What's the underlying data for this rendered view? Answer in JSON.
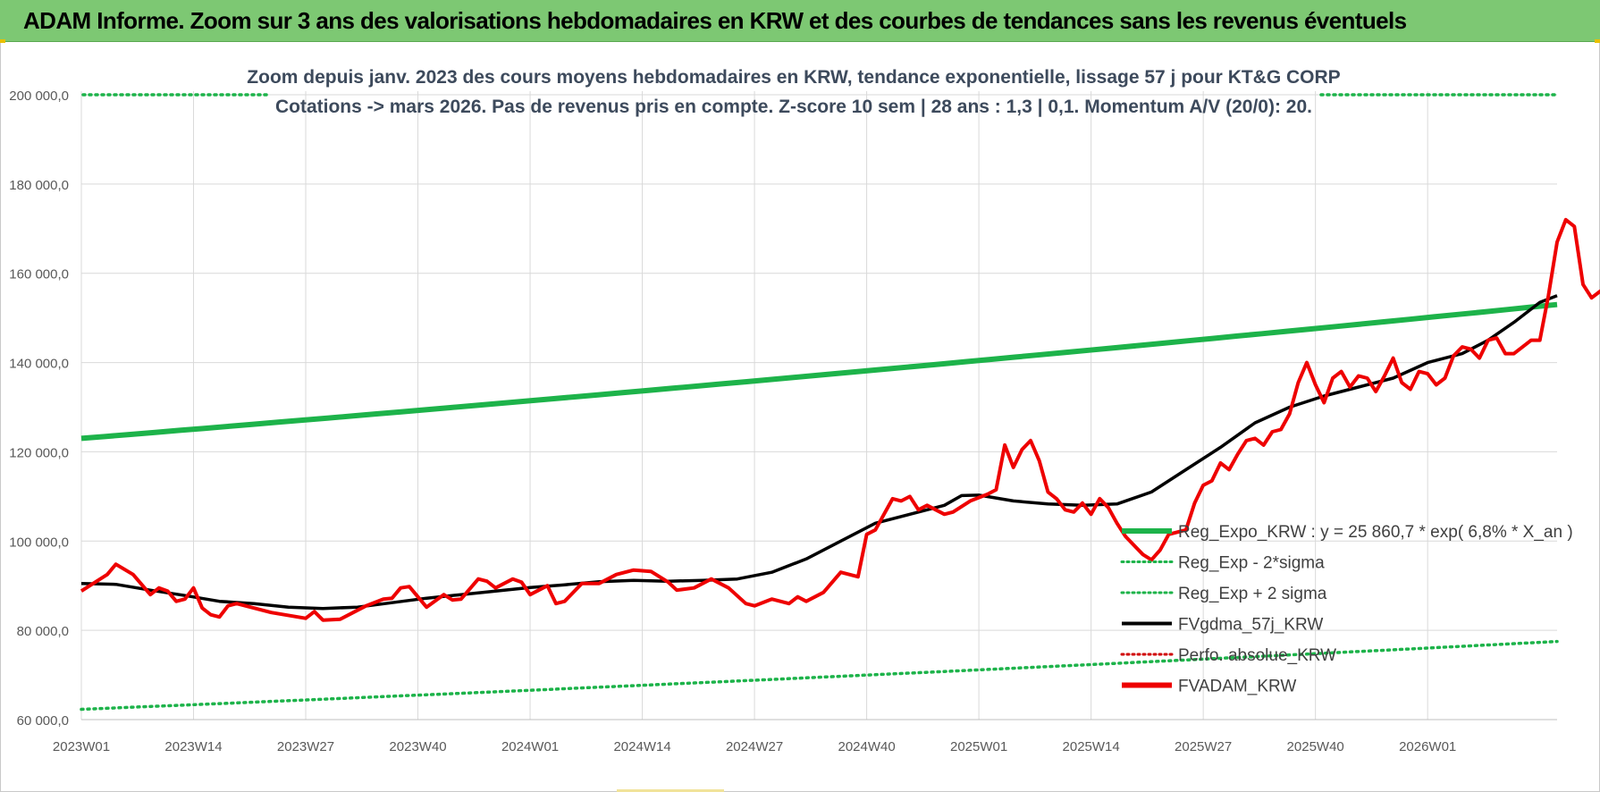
{
  "banner": {
    "title": "ADAM Informe. Zoom sur 3 ans des valorisations hebdomadaires en KRW et des courbes de tendances sans les revenus éventuels"
  },
  "colors": {
    "banner": "#7dc873",
    "reg_expo": "#1db34a",
    "sigma": "#1db34a",
    "fvgdma": "#000000",
    "perfo": "#d00000",
    "fvadam": "#ee0000",
    "grid": "#d9d9d9",
    "title_text": "#3d4a5c",
    "axis_text": "#595959"
  },
  "chart_data": {
    "type": "line",
    "title_line1": "Zoom depuis janv. 2023 des cours moyens hebdomadaires en KRW, tendance exponentielle, lissage 57 j pour KT&G CORP",
    "title_line2": "Cotations -> mars 2026. Pas de revenus pris en compte. Z-score 10 sem | 28 ans : 1,3 | 0,1. Momentum A/V (20/0): 20.",
    "ylim": [
      60000,
      200000
    ],
    "y_ticks": [
      "60 000,0",
      "80 000,0",
      "100 000,0",
      "120 000,0",
      "140 000,0",
      "160 000,0",
      "180 000,0",
      "200 000,0"
    ],
    "x_ticks": [
      "2023W01",
      "2023W14",
      "2023W27",
      "2023W40",
      "2024W01",
      "2024W14",
      "2024W27",
      "2024W40",
      "2025W01",
      "2025W14",
      "2025W27",
      "2025W40",
      "2026W01"
    ],
    "x_tick_week_index": [
      0,
      13,
      26,
      39,
      52,
      65,
      78,
      91,
      104,
      117,
      130,
      143,
      156
    ],
    "n_weeks": 171,
    "grid": true,
    "legend_position": "bottom-right",
    "legend": [
      {
        "label": "Reg_Expo_KRW : y = 25 860,7 * exp( 6,8% *  X_an )",
        "style": "solid-thick",
        "color": "#1db34a"
      },
      {
        "label": "Reg_Exp - 2*sigma",
        "style": "dotted",
        "color": "#1db34a"
      },
      {
        "label": "Reg_Exp + 2 sigma",
        "style": "dotted",
        "color": "#1db34a"
      },
      {
        "label": "FVgdma_57j_KRW",
        "style": "solid",
        "color": "#000000"
      },
      {
        "label": "Perfo. absolue_KRW",
        "style": "dotted",
        "color": "#d00000"
      },
      {
        "label": "FVADAM_KRW",
        "style": "solid-thick",
        "color": "#ee0000"
      }
    ],
    "series": [
      {
        "name": "Reg_Expo_KRW",
        "type": "exponential",
        "start": 123000,
        "end": 153000
      },
      {
        "name": "Reg_Exp - 2*sigma",
        "type": "exponential",
        "start": 62300,
        "end": 77500
      },
      {
        "name": "Reg_Exp + 2 sigma",
        "type": "exponential",
        "start": 200000,
        "end": 200000,
        "note_visible_only_edges": true
      },
      {
        "name": "FVgdma_57j_KRW",
        "points": [
          [
            0,
            90500
          ],
          [
            4,
            90300
          ],
          [
            8,
            89000
          ],
          [
            12,
            87800
          ],
          [
            16,
            86500
          ],
          [
            20,
            86000
          ],
          [
            24,
            85200
          ],
          [
            28,
            84900
          ],
          [
            32,
            85200
          ],
          [
            36,
            86200
          ],
          [
            40,
            87200
          ],
          [
            44,
            88000
          ],
          [
            48,
            88800
          ],
          [
            52,
            89600
          ],
          [
            56,
            90200
          ],
          [
            60,
            90900
          ],
          [
            64,
            91200
          ],
          [
            68,
            91000
          ],
          [
            72,
            91200
          ],
          [
            76,
            91500
          ],
          [
            80,
            93000
          ],
          [
            84,
            96000
          ],
          [
            88,
            100000
          ],
          [
            92,
            104000
          ],
          [
            96,
            106000
          ],
          [
            100,
            108000
          ],
          [
            102,
            110200
          ],
          [
            104,
            110300
          ],
          [
            108,
            109000
          ],
          [
            112,
            108300
          ],
          [
            116,
            108000
          ],
          [
            120,
            108300
          ],
          [
            124,
            111000
          ],
          [
            128,
            116000
          ],
          [
            132,
            121000
          ],
          [
            136,
            126500
          ],
          [
            140,
            130000
          ],
          [
            144,
            132500
          ],
          [
            148,
            134500
          ],
          [
            152,
            136500
          ],
          [
            156,
            140000
          ],
          [
            160,
            142000
          ],
          [
            163,
            145000
          ],
          [
            166,
            149000
          ],
          [
            169,
            153500
          ],
          [
            171,
            155000
          ]
        ]
      },
      {
        "name": "FVADAM_KRW",
        "points": [
          [
            0,
            88800
          ],
          [
            3,
            92500
          ],
          [
            4,
            94800
          ],
          [
            6,
            92500
          ],
          [
            8,
            88000
          ],
          [
            9,
            89500
          ],
          [
            10,
            88800
          ],
          [
            11,
            86500
          ],
          [
            12,
            87000
          ],
          [
            13,
            89500
          ],
          [
            14,
            85000
          ],
          [
            15,
            83500
          ],
          [
            16,
            83000
          ],
          [
            17,
            85500
          ],
          [
            18,
            86000
          ],
          [
            20,
            85000
          ],
          [
            22,
            84000
          ],
          [
            26,
            82700
          ],
          [
            27,
            84200
          ],
          [
            28,
            82300
          ],
          [
            30,
            82500
          ],
          [
            31,
            83500
          ],
          [
            33,
            85500
          ],
          [
            35,
            87000
          ],
          [
            36,
            87200
          ],
          [
            37,
            89500
          ],
          [
            38,
            89800
          ],
          [
            40,
            85200
          ],
          [
            42,
            88000
          ],
          [
            43,
            86800
          ],
          [
            44,
            87000
          ],
          [
            46,
            91500
          ],
          [
            47,
            91000
          ],
          [
            48,
            89500
          ],
          [
            50,
            91500
          ],
          [
            51,
            90800
          ],
          [
            52,
            88000
          ],
          [
            54,
            90000
          ],
          [
            55,
            86000
          ],
          [
            56,
            86500
          ],
          [
            58,
            90500
          ],
          [
            60,
            90500
          ],
          [
            62,
            92500
          ],
          [
            64,
            93500
          ],
          [
            66,
            93200
          ],
          [
            68,
            90800
          ],
          [
            69,
            89000
          ],
          [
            71,
            89500
          ],
          [
            73,
            91500
          ],
          [
            75,
            89500
          ],
          [
            77,
            86000
          ],
          [
            78,
            85500
          ],
          [
            80,
            87000
          ],
          [
            82,
            86000
          ],
          [
            83,
            87500
          ],
          [
            84,
            86500
          ],
          [
            86,
            88500
          ],
          [
            88,
            93000
          ],
          [
            90,
            92000
          ],
          [
            91,
            101500
          ],
          [
            92,
            102500
          ],
          [
            94,
            109500
          ],
          [
            95,
            109000
          ],
          [
            96,
            110000
          ],
          [
            97,
            107000
          ],
          [
            98,
            108000
          ],
          [
            100,
            106000
          ],
          [
            101,
            106500
          ],
          [
            103,
            109000
          ],
          [
            105,
            110500
          ],
          [
            106,
            111500
          ],
          [
            107,
            121500
          ],
          [
            108,
            116500
          ],
          [
            109,
            120500
          ],
          [
            110,
            122500
          ],
          [
            111,
            118000
          ],
          [
            112,
            111000
          ],
          [
            113,
            109500
          ],
          [
            114,
            107000
          ],
          [
            115,
            106500
          ],
          [
            116,
            108500
          ],
          [
            117,
            106000
          ],
          [
            118,
            109500
          ],
          [
            119,
            107500
          ],
          [
            120,
            104000
          ],
          [
            121,
            101000
          ],
          [
            122,
            99000
          ],
          [
            123,
            97000
          ],
          [
            124,
            95800
          ],
          [
            125,
            98000
          ],
          [
            126,
            101500
          ],
          [
            128,
            102500
          ],
          [
            129,
            108500
          ],
          [
            130,
            112500
          ],
          [
            131,
            113500
          ],
          [
            132,
            117500
          ],
          [
            133,
            116000
          ],
          [
            134,
            119500
          ],
          [
            135,
            122500
          ],
          [
            136,
            123000
          ],
          [
            137,
            121500
          ],
          [
            138,
            124500
          ],
          [
            139,
            125000
          ],
          [
            140,
            128500
          ],
          [
            141,
            135500
          ],
          [
            142,
            140000
          ],
          [
            143,
            135000
          ],
          [
            144,
            131000
          ],
          [
            145,
            136500
          ],
          [
            146,
            138000
          ],
          [
            147,
            134500
          ],
          [
            148,
            137000
          ],
          [
            149,
            136500
          ],
          [
            150,
            133500
          ],
          [
            151,
            137000
          ],
          [
            152,
            141000
          ],
          [
            153,
            135500
          ],
          [
            154,
            134000
          ],
          [
            155,
            138000
          ],
          [
            156,
            137500
          ],
          [
            157,
            135000
          ],
          [
            158,
            136500
          ],
          [
            159,
            141500
          ],
          [
            160,
            143500
          ],
          [
            161,
            143000
          ],
          [
            162,
            141000
          ],
          [
            163,
            145000
          ],
          [
            164,
            145500
          ],
          [
            165,
            142000
          ],
          [
            166,
            142000
          ],
          [
            167,
            143500
          ],
          [
            168,
            145000
          ],
          [
            169,
            145000
          ],
          [
            170,
            155000
          ],
          [
            171,
            167000
          ],
          [
            172,
            172000
          ],
          [
            173,
            170500
          ],
          [
            174,
            157500
          ],
          [
            175,
            154500
          ],
          [
            176,
            156000
          ],
          [
            177,
            156000
          ]
        ]
      }
    ]
  }
}
